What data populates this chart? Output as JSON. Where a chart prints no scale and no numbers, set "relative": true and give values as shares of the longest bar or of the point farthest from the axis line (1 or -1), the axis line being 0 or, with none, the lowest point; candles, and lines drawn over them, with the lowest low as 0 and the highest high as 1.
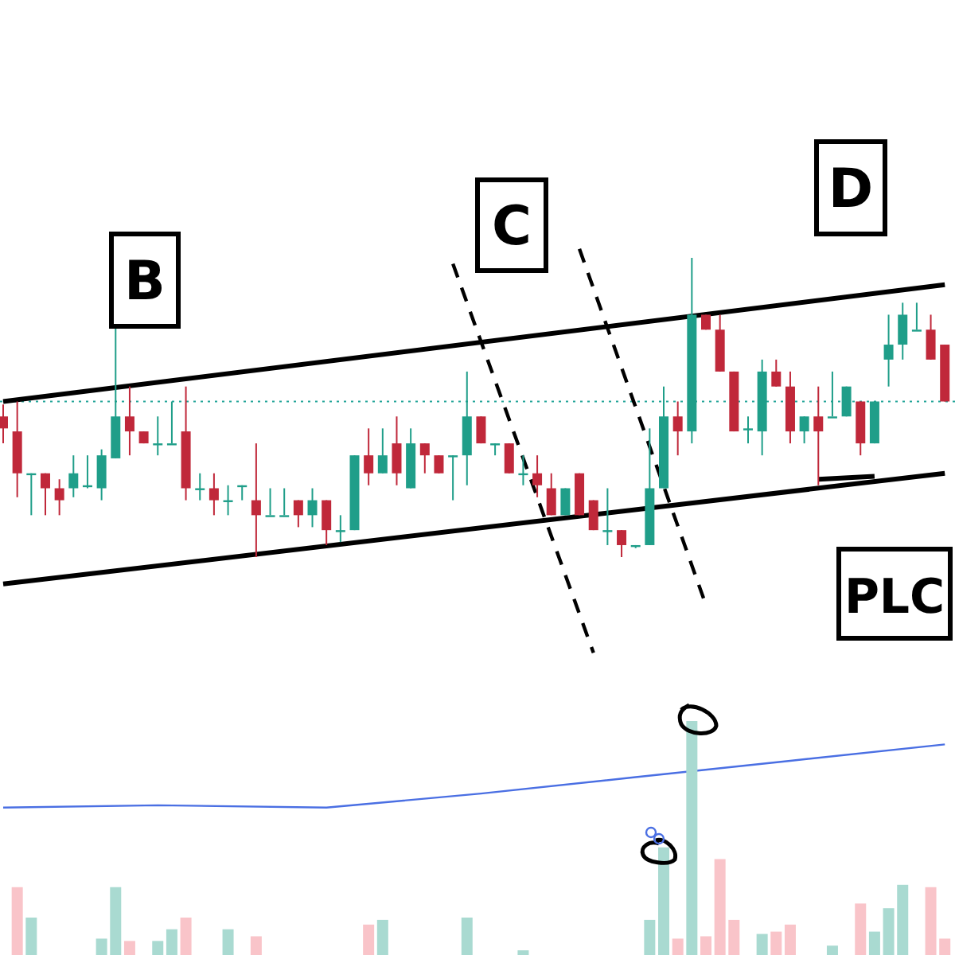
{
  "chart_data": [
    {
      "type": "candlestick",
      "relative": true,
      "categories": [
        null,
        null,
        null,
        null,
        null,
        null,
        null,
        null,
        null,
        null,
        null,
        null,
        null,
        null,
        null,
        null,
        null,
        null,
        null,
        null,
        null,
        null,
        null,
        null,
        null,
        null,
        null,
        null,
        null,
        null,
        null,
        null,
        null,
        null,
        null,
        null,
        null,
        null,
        null,
        null,
        null,
        null,
        null,
        null,
        null,
        null,
        null,
        null,
        null,
        null,
        null,
        null,
        null,
        null,
        null,
        null,
        null,
        null,
        null,
        null,
        null,
        null,
        null,
        null,
        null,
        null,
        null,
        null
      ],
      "ohlc": [
        [
          0.47,
          0.51,
          0.38,
          0.43
        ],
        [
          0.42,
          0.52,
          0.2,
          0.28
        ],
        [
          0.28,
          0.28,
          0.14,
          0.28
        ],
        [
          0.28,
          0.28,
          0.14,
          0.23
        ],
        [
          0.23,
          0.26,
          0.14,
          0.19
        ],
        [
          0.23,
          0.34,
          0.2,
          0.28
        ],
        [
          0.24,
          0.34,
          0.23,
          0.24
        ],
        [
          0.23,
          0.36,
          0.19,
          0.34
        ],
        [
          0.33,
          0.77,
          0.33,
          0.47
        ],
        [
          0.47,
          0.57,
          0.34,
          0.42
        ],
        [
          0.42,
          0.42,
          0.38,
          0.38
        ],
        [
          0.38,
          0.47,
          0.34,
          0.38
        ],
        [
          0.38,
          0.52,
          0.38,
          0.38
        ],
        [
          0.42,
          0.57,
          0.19,
          0.23
        ],
        [
          0.23,
          0.28,
          0.19,
          0.23
        ],
        [
          0.23,
          0.28,
          0.14,
          0.19
        ],
        [
          0.19,
          0.24,
          0.14,
          0.19
        ],
        [
          0.24,
          0.24,
          0.19,
          0.24
        ],
        [
          0.19,
          0.38,
          0,
          0.14
        ],
        [
          0.14,
          0.23,
          0.14,
          0.14
        ],
        [
          0.14,
          0.23,
          0.14,
          0.14
        ],
        [
          0.19,
          0.19,
          0.1,
          0.14
        ],
        [
          0.14,
          0.23,
          0.1,
          0.19
        ],
        [
          0.19,
          0.19,
          0.04,
          0.09
        ],
        [
          0.09,
          0.14,
          0.05,
          0.09
        ],
        [
          0.09,
          0.34,
          0.09,
          0.34
        ],
        [
          0.34,
          0.43,
          0.24,
          0.28
        ],
        [
          0.28,
          0.43,
          0.28,
          0.34
        ],
        [
          0.38,
          0.47,
          0.24,
          0.28
        ],
        [
          0.23,
          0.43,
          0.23,
          0.38
        ],
        [
          0.38,
          0.38,
          0.28,
          0.34
        ],
        [
          0.34,
          0.34,
          0.28,
          0.28
        ],
        [
          0.34,
          0.34,
          0.19,
          0.34
        ],
        [
          0.34,
          0.62,
          0.24,
          0.47
        ],
        [
          0.47,
          0.47,
          0.38,
          0.38
        ],
        [
          0.38,
          0.38,
          0.34,
          0.38
        ],
        [
          0.38,
          0.38,
          0.28,
          0.28
        ],
        [
          0.28,
          0.34,
          0.24,
          0.28
        ],
        [
          0.28,
          0.34,
          0.2,
          0.24
        ],
        [
          0.23,
          0.28,
          0.14,
          0.14
        ],
        [
          0.14,
          0.23,
          0.14,
          0.23
        ],
        [
          0.28,
          0.28,
          0.14,
          0.14
        ],
        [
          0.19,
          0.19,
          0.09,
          0.09
        ],
        [
          0.09,
          0.23,
          0.04,
          0.09
        ],
        [
          0.09,
          0.09,
          0,
          0.04
        ],
        [
          0.04,
          0.04,
          0.03,
          0.04
        ],
        [
          0.04,
          0.43,
          0.04,
          0.23
        ],
        [
          0.23,
          0.57,
          0.23,
          0.47
        ],
        [
          0.47,
          0.52,
          0.34,
          0.42
        ],
        [
          0.42,
          1,
          0.38,
          0.81
        ],
        [
          0.81,
          0.81,
          0.76,
          0.76
        ],
        [
          0.76,
          0.81,
          0.62,
          0.62
        ],
        [
          0.62,
          0.62,
          0.42,
          0.42
        ],
        [
          0.43,
          0.47,
          0.38,
          0.43
        ],
        [
          0.42,
          0.66,
          0.34,
          0.62
        ],
        [
          0.62,
          0.66,
          0.57,
          0.57
        ],
        [
          0.57,
          0.62,
          0.38,
          0.42
        ],
        [
          0.42,
          0.47,
          0.38,
          0.47
        ],
        [
          0.47,
          0.57,
          0.24,
          0.42
        ],
        [
          0.47,
          0.62,
          0.47,
          0.47
        ],
        [
          0.47,
          0.57,
          0.47,
          0.57
        ],
        [
          0.52,
          0.52,
          0.34,
          0.38
        ],
        [
          0.38,
          0.52,
          0.38,
          0.52
        ],
        [
          0.66,
          0.81,
          0.57,
          0.71
        ],
        [
          0.71,
          0.85,
          0.66,
          0.81
        ],
        [
          0.76,
          0.85,
          0.76,
          0.76
        ],
        [
          0.76,
          0.81,
          0.66,
          0.66
        ],
        [
          0.71,
          0.71,
          0.52,
          0.52
        ]
      ],
      "colors": [
        "#c0283a",
        "#c0283a",
        "#1f9e89",
        "#c0283a",
        "#c0283a",
        "#1f9e89",
        "#1f9e89",
        "#1f9e89",
        "#1f9e89",
        "#c0283a",
        "#c0283a",
        "#1f9e89",
        "#1f9e89",
        "#c0283a",
        "#1f9e89",
        "#c0283a",
        "#1f9e89",
        "#1f9e89",
        "#c0283a",
        "#1f9e89",
        "#1f9e89",
        "#c0283a",
        "#1f9e89",
        "#c0283a",
        "#1f9e89",
        "#1f9e89",
        "#c0283a",
        "#1f9e89",
        "#c0283a",
        "#1f9e89",
        "#c0283a",
        "#c0283a",
        "#1f9e89",
        "#1f9e89",
        "#c0283a",
        "#1f9e89",
        "#c0283a",
        "#1f9e89",
        "#c0283a",
        "#c0283a",
        "#1f9e89",
        "#c0283a",
        "#c0283a",
        "#1f9e89",
        "#c0283a",
        "#1f9e89",
        "#1f9e89",
        "#1f9e89",
        "#c0283a",
        "#1f9e89",
        "#c0283a",
        "#c0283a",
        "#c0283a",
        "#1f9e89",
        "#1f9e89",
        "#c0283a",
        "#c0283a",
        "#1f9e89",
        "#c0283a",
        "#1f9e89",
        "#1f9e89",
        "#c0283a",
        "#1f9e89",
        "#1f9e89",
        "#1f9e89",
        "#1f9e89",
        "#c0283a",
        "#c0283a"
      ],
      "series": [
        {
          "type": "line",
          "values": [
            0.52,
            null,
            null,
            null,
            null,
            null,
            null,
            null,
            null,
            null,
            null,
            null,
            null,
            null,
            null,
            null,
            null,
            null,
            null,
            null,
            null,
            null,
            null,
            null,
            null,
            null,
            null,
            null,
            null,
            null,
            null,
            null,
            null,
            null,
            null,
            null,
            null,
            null,
            null,
            null,
            null,
            null,
            null,
            null,
            null,
            null,
            null,
            null,
            null,
            null,
            null,
            null,
            null,
            null,
            null,
            null,
            null,
            null,
            null,
            null,
            null,
            null,
            null,
            null,
            null,
            null,
            null,
            0.91
          ],
          "color": "#000000"
        },
        {
          "type": "line",
          "values": [
            -0.09,
            null,
            null,
            null,
            null,
            null,
            null,
            null,
            null,
            null,
            null,
            null,
            null,
            null,
            null,
            null,
            null,
            null,
            null,
            null,
            null,
            null,
            null,
            null,
            null,
            null,
            null,
            null,
            null,
            null,
            null,
            null,
            null,
            null,
            null,
            null,
            null,
            null,
            null,
            null,
            null,
            null,
            null,
            null,
            null,
            null,
            null,
            null,
            null,
            null,
            null,
            null,
            null,
            null,
            null,
            null,
            null,
            null,
            null,
            null,
            null,
            null,
            null,
            null,
            null,
            null,
            null,
            0.28
          ],
          "color": "#000000"
        },
        {
          "type": "line",
          "values": [
            null,
            null,
            null,
            null,
            null,
            null,
            null,
            null,
            null,
            null,
            null,
            null,
            null,
            null,
            null,
            null,
            null,
            null,
            null,
            null,
            null,
            null,
            null,
            null,
            null,
            null,
            null,
            null,
            null,
            null,
            null,
            null,
            null,
            null,
            null,
            null,
            null,
            null,
            null,
            null,
            null,
            null,
            null,
            null,
            null,
            null,
            null,
            null,
            null,
            null,
            null,
            null,
            null,
            null,
            null,
            null,
            null,
            null,
            0.26,
            null,
            null,
            null,
            0.27,
            null,
            null,
            null,
            null,
            null
          ],
          "color": "#000000"
        },
        {
          "type": "line",
          "values": [
            null,
            null,
            null,
            null,
            null,
            null,
            null,
            null,
            null,
            null,
            null,
            null,
            null,
            null,
            null,
            null,
            null,
            null,
            null,
            null,
            null,
            null,
            null,
            null,
            null,
            null,
            null,
            null,
            null,
            null,
            null,
            null,
            0.98,
            null,
            null,
            null,
            null,
            null,
            null,
            null,
            null,
            null,
            -0.32,
            null,
            null,
            null,
            null,
            null,
            null,
            null,
            null,
            null,
            null,
            null,
            null,
            null,
            null,
            null,
            null,
            null,
            null,
            null,
            null,
            null,
            null,
            null,
            null,
            null
          ],
          "color": "#000000",
          "line_style": "dashed"
        },
        {
          "type": "line",
          "values": [
            null,
            null,
            null,
            null,
            null,
            null,
            null,
            null,
            null,
            null,
            null,
            null,
            null,
            null,
            null,
            null,
            null,
            null,
            null,
            null,
            null,
            null,
            null,
            null,
            null,
            null,
            null,
            null,
            null,
            null,
            null,
            null,
            null,
            null,
            null,
            null,
            null,
            null,
            null,
            null,
            null,
            1.03,
            null,
            null,
            null,
            null,
            null,
            null,
            null,
            null,
            -0.16,
            null,
            null,
            null,
            null,
            null,
            null,
            null,
            null,
            null,
            null,
            null,
            null,
            null,
            null,
            null,
            null,
            null
          ],
          "color": "#000000",
          "line_style": "dashed"
        }
      ],
      "ref_lines": [
        {
          "axis": "y",
          "value": 0.52,
          "color": "#26a69a",
          "line_style": "dotted"
        }
      ],
      "annotations": [
        "B",
        "C",
        "D",
        "PLC"
      ]
    },
    {
      "type": "bar",
      "relative": true,
      "categories": [
        null,
        null,
        null,
        null,
        null,
        null,
        null,
        null,
        null,
        null,
        null,
        null,
        null,
        null,
        null,
        null,
        null,
        null,
        null,
        null,
        null,
        null,
        null,
        null,
        null,
        null,
        null,
        null,
        null,
        null,
        null,
        null,
        null,
        null,
        null,
        null,
        null,
        null,
        null,
        null,
        null,
        null,
        null,
        null,
        null,
        null,
        null,
        null,
        null,
        null,
        null,
        null,
        null,
        null,
        null,
        null,
        null,
        null,
        null,
        null,
        null,
        null,
        null,
        null,
        null,
        null,
        null,
        null
      ],
      "values": [
        null,
        0.29,
        0.16,
        null,
        null,
        null,
        null,
        0.07,
        0.29,
        0.06,
        null,
        0.06,
        0.11,
        0.16,
        null,
        null,
        0.11,
        null,
        0.08,
        null,
        null,
        null,
        null,
        null,
        null,
        null,
        0.13,
        0.15,
        null,
        null,
        null,
        null,
        null,
        0.16,
        null,
        null,
        null,
        0.02,
        null,
        null,
        null,
        null,
        null,
        null,
        null,
        null,
        0.15,
        0.46,
        0.07,
        1,
        0.08,
        0.41,
        0.15,
        null,
        0.09,
        0.1,
        0.13,
        null,
        null,
        0.04,
        null,
        0.22,
        0.1,
        0.2,
        0.3,
        null,
        0.29,
        0.07
      ],
      "colors": [
        null,
        "#f9c4c9",
        "#a9dad1",
        null,
        null,
        null,
        null,
        "#a9dad1",
        "#a9dad1",
        "#f9c4c9",
        null,
        "#a9dad1",
        "#a9dad1",
        "#f9c4c9",
        null,
        null,
        "#a9dad1",
        null,
        "#f9c4c9",
        null,
        null,
        null,
        null,
        null,
        null,
        null,
        "#f9c4c9",
        "#a9dad1",
        null,
        null,
        null,
        null,
        null,
        "#a9dad1",
        null,
        null,
        null,
        "#a9dad1",
        null,
        null,
        null,
        null,
        null,
        null,
        null,
        null,
        "#a9dad1",
        "#a9dad1",
        "#f9c4c9",
        "#a9dad1",
        "#f9c4c9",
        "#f9c4c9",
        "#f9c4c9",
        null,
        "#a9dad1",
        "#f9c4c9",
        "#f9c4c9",
        null,
        null,
        "#a9dad1",
        null,
        "#f9c4c9",
        "#a9dad1",
        "#a9dad1",
        "#a9dad1",
        null,
        "#f9c4c9",
        "#f9c4c9"
      ],
      "series": [
        {
          "type": "line",
          "values": [
            0.63,
            null,
            null,
            null,
            null,
            null,
            null,
            null,
            null,
            null,
            null,
            0.64,
            null,
            null,
            null,
            null,
            null,
            null,
            null,
            null,
            null,
            null,
            null,
            0.63,
            null,
            null,
            null,
            null,
            null,
            null,
            null,
            null,
            null,
            null,
            0.69,
            null,
            null,
            null,
            null,
            null,
            null,
            null,
            null,
            null,
            null,
            0.76,
            null,
            null,
            null,
            null,
            null,
            null,
            null,
            null,
            null,
            null,
            0.83,
            null,
            null,
            null,
            null,
            null,
            null,
            null,
            null,
            null,
            null,
            0.9
          ],
          "color": "#4a6fe3"
        }
      ]
    }
  ]
}
